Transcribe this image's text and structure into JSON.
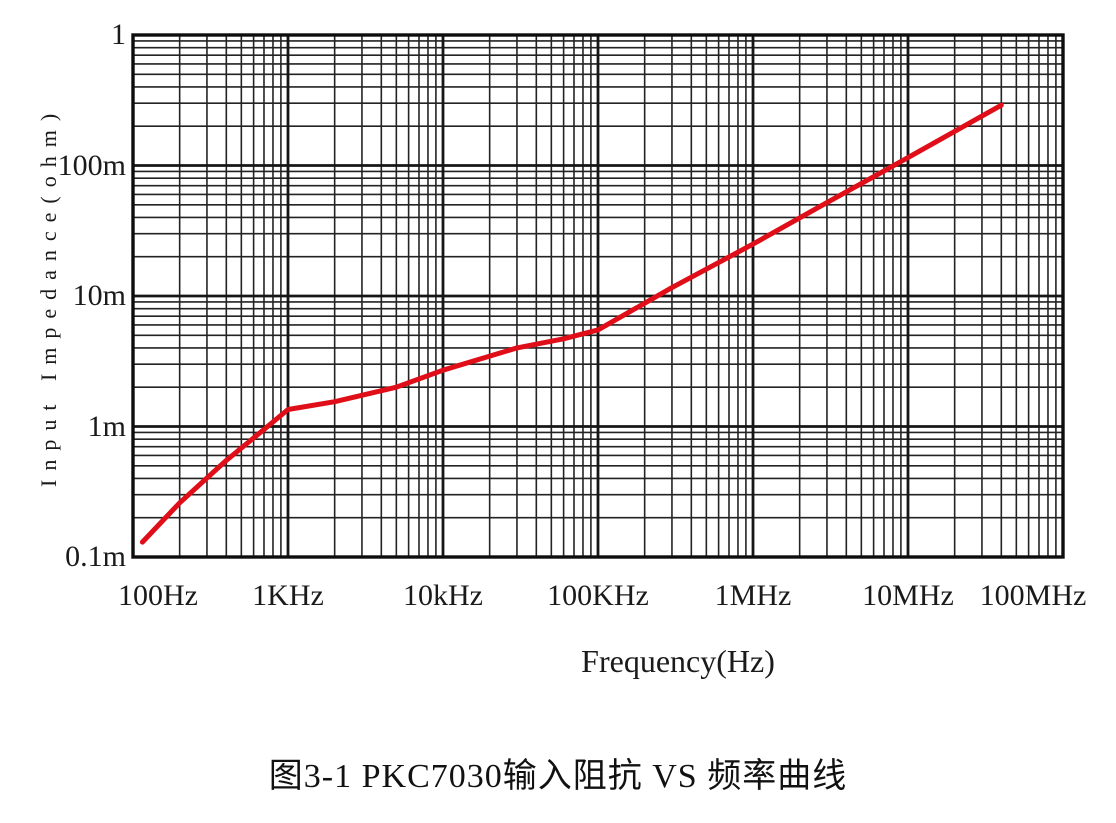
{
  "caption": "图3-1 PKC7030输入阻抗 VS 频率曲线",
  "colors": {
    "background": "#ffffff",
    "grid_major": "#161616",
    "grid_minor": "#232323",
    "plot_border": "#0d0d0d",
    "curve": "#e00e18",
    "text": "#1a1a1a"
  },
  "chart_data": {
    "type": "line",
    "title": "",
    "xlabel": "Frequency(Hz)",
    "ylabel": "Input Impedance(ohm)",
    "x_scale": "log",
    "y_scale": "log",
    "x_range_hz": [
      100,
      100000000
    ],
    "y_range_ohm": [
      0.0001,
      1
    ],
    "grid": "major and minor log gridlines on both axes, full black rectangle border",
    "legend": "none",
    "x_ticks": [
      {
        "value": 100,
        "label": "100Hz"
      },
      {
        "value": 1000,
        "label": "1KHz"
      },
      {
        "value": 10000,
        "label": "10kHz"
      },
      {
        "value": 100000,
        "label": "100KHz"
      },
      {
        "value": 1000000,
        "label": "1MHz"
      },
      {
        "value": 10000000,
        "label": "10MHz"
      },
      {
        "value": 100000000,
        "label": "100MHz"
      }
    ],
    "y_ticks": [
      {
        "value": 1,
        "label": "1"
      },
      {
        "value": 0.1,
        "label": "100m"
      },
      {
        "value": 0.01,
        "label": "10m"
      },
      {
        "value": 0.001,
        "label": "1m"
      },
      {
        "value": 0.0001,
        "label": "0.1m"
      }
    ],
    "series": [
      {
        "name": "PKC7030 input impedance vs frequency",
        "color": "#e00e18",
        "points_hz_ohm": [
          [
            115,
            0.00013
          ],
          [
            200,
            0.00026
          ],
          [
            400,
            0.00055
          ],
          [
            700,
            0.00095
          ],
          [
            1000,
            0.00135
          ],
          [
            2000,
            0.00155
          ],
          [
            5000,
            0.002
          ],
          [
            10000,
            0.0027
          ],
          [
            30000,
            0.004
          ],
          [
            60000,
            0.0047
          ],
          [
            100000,
            0.0055
          ],
          [
            300000,
            0.0116
          ],
          [
            1000000,
            0.025
          ],
          [
            3000000,
            0.052
          ],
          [
            10000000,
            0.115
          ],
          [
            40000000,
            0.29
          ]
        ]
      }
    ]
  }
}
